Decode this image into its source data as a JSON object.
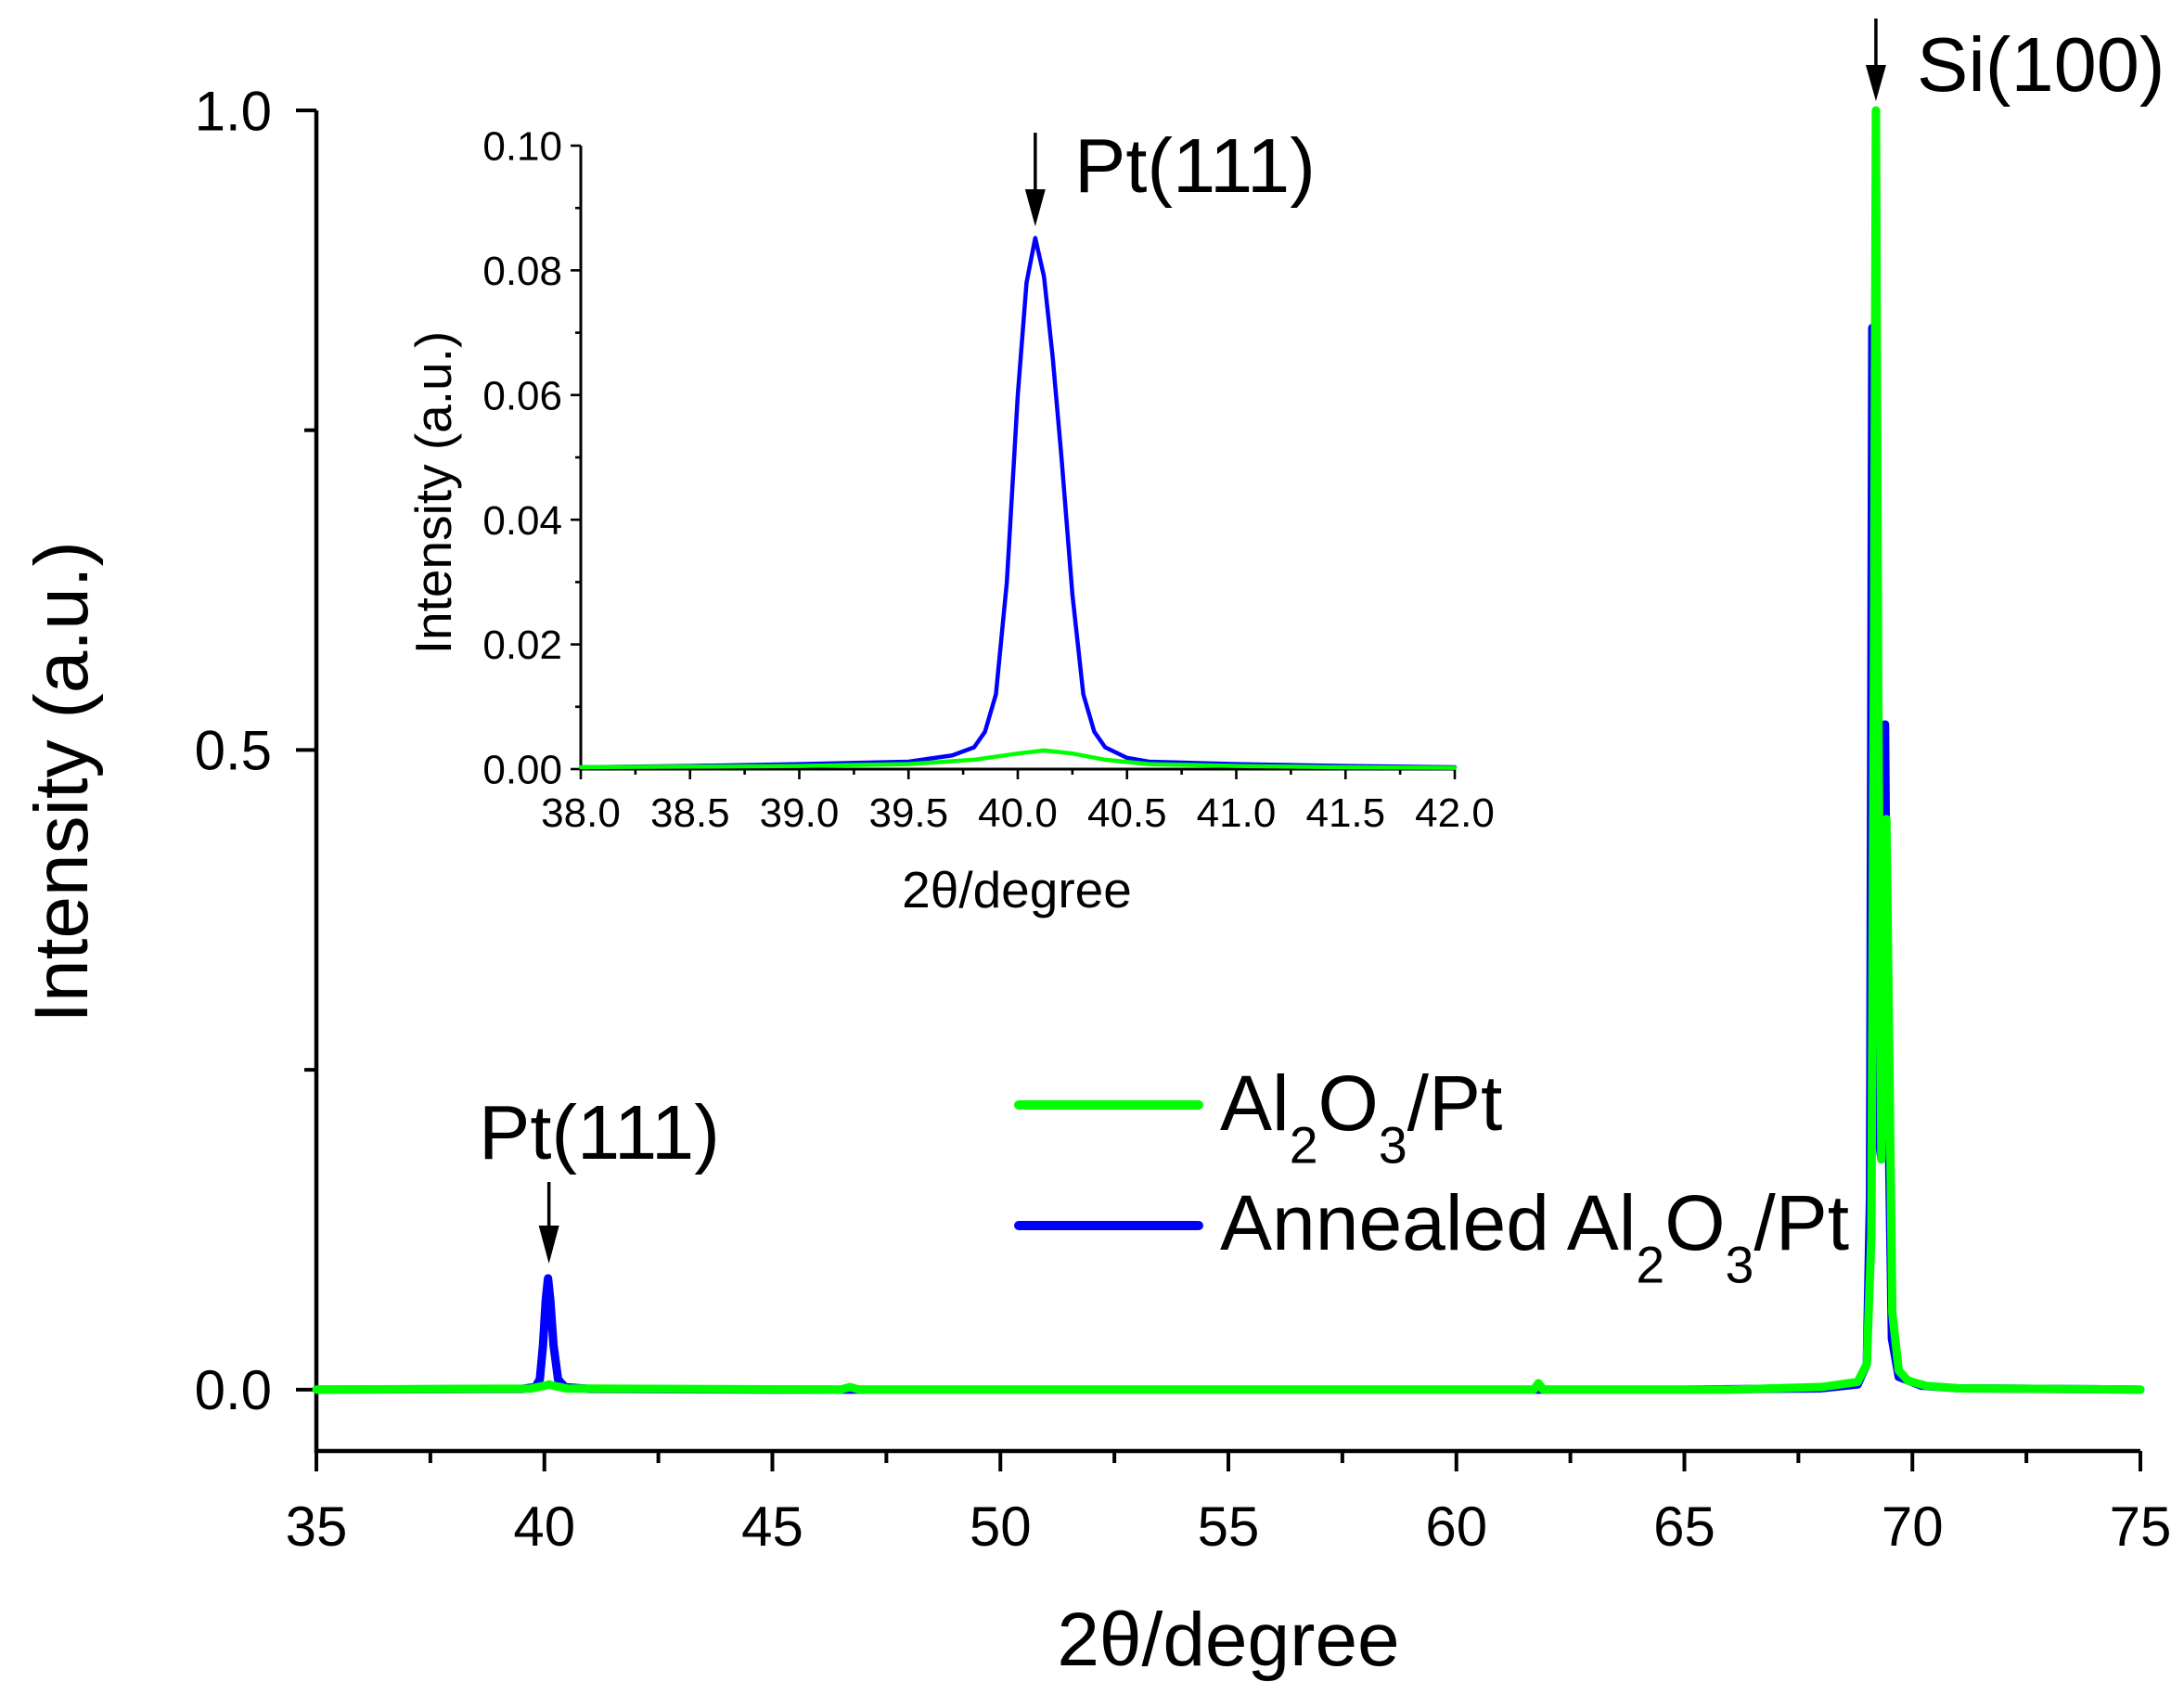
{
  "chart_data": [
    {
      "id": "main",
      "type": "line",
      "title": "",
      "xlabel": "2θ/degree",
      "ylabel": "Intensity (a.u.)",
      "xlim": [
        35,
        75
      ],
      "ylim": [
        -0.048,
        1.0
      ],
      "xticks": [
        "35",
        "40",
        "45",
        "50",
        "55",
        "60",
        "65",
        "70",
        "75"
      ],
      "yticks": [
        "0.0",
        "0.5",
        "1.0"
      ],
      "grid": false,
      "legend": "center",
      "axis_color": "#000000",
      "series": [
        {
          "name": "Al2O3/Pt",
          "color": "#00ff00",
          "x": [
            35,
            39.7,
            40.0,
            40.1,
            40.2,
            40.5,
            46.5,
            46.7,
            46.9,
            61.7,
            61.8,
            61.9,
            66,
            68,
            68.8,
            69.0,
            69.1,
            69.16,
            69.2,
            69.25,
            69.32,
            69.37,
            69.43,
            69.48,
            69.56,
            69.7,
            69.9,
            70.3,
            71,
            75
          ],
          "y": [
            0,
            0.0008,
            0.003,
            0.004,
            0.003,
            0.0008,
            0,
            0.002,
            0,
            0,
            0.005,
            0,
            0,
            0.002,
            0.006,
            0.02,
            0.12,
            0.6,
            1.0,
            0.55,
            0.18,
            0.25,
            0.446,
            0.3,
            0.06,
            0.015,
            0.007,
            0.003,
            0.001,
            0
          ]
        },
        {
          "name": "Annealed Al2O3/Pt",
          "color": "#0000ff",
          "x": [
            35,
            39.5,
            39.8,
            39.9,
            39.97,
            40.03,
            40.08,
            40.13,
            40.2,
            40.3,
            40.45,
            41,
            45,
            50,
            55,
            60,
            65,
            68,
            68.8,
            69.0,
            69.07,
            69.12,
            69.17,
            69.25,
            69.32,
            69.4,
            69.46,
            69.55,
            69.7,
            70.2,
            71,
            75
          ],
          "y": [
            0,
            0.0005,
            0.002,
            0.008,
            0.035,
            0.07,
            0.087,
            0.07,
            0.035,
            0.008,
            0.002,
            0.0005,
            0,
            0,
            0,
            0,
            0,
            0.001,
            0.004,
            0.02,
            0.15,
            0.83,
            0.45,
            0.2,
            0.18,
            0.52,
            0.25,
            0.04,
            0.01,
            0.003,
            0.001,
            0
          ]
        }
      ],
      "annotations": [
        {
          "text": "Pt(111)",
          "x": 40.1
        },
        {
          "text": "Si(100)",
          "x": 69.2
        }
      ]
    },
    {
      "id": "inset",
      "type": "line",
      "title": "",
      "xlabel": "2θ/degree",
      "ylabel": "Intensity (a.u.)",
      "xlim": [
        38.0,
        42.0
      ],
      "ylim": [
        0.0,
        0.1
      ],
      "xticks": [
        "38.0",
        "38.5",
        "39.0",
        "39.5",
        "40.0",
        "40.5",
        "41.0",
        "41.5",
        "42.0"
      ],
      "yticks": [
        "0.00",
        "0.02",
        "0.04",
        "0.06",
        "0.08",
        "0.10"
      ],
      "grid": false,
      "axis_color": "#000000",
      "series": [
        {
          "name": "Al2O3/Pt",
          "color": "#00ff00",
          "x": [
            38.0,
            38.5,
            39.0,
            39.5,
            39.8,
            40.0,
            40.12,
            40.25,
            40.4,
            40.6,
            41.0,
            41.5,
            42.0
          ],
          "y": [
            0.0003,
            0.0004,
            0.0005,
            0.0008,
            0.0015,
            0.0025,
            0.003,
            0.0025,
            0.0015,
            0.0008,
            0.0005,
            0.0003,
            0.0002
          ]
        },
        {
          "name": "Annealed Al2O3/Pt",
          "color": "#0000ff",
          "x": [
            38.0,
            38.5,
            39.0,
            39.5,
            39.7,
            39.8,
            39.85,
            39.9,
            39.95,
            40.0,
            40.04,
            40.08,
            40.12,
            40.16,
            40.2,
            40.25,
            40.3,
            40.35,
            40.4,
            40.5,
            40.6,
            41.0,
            41.5,
            42.0
          ],
          "y": [
            0.0003,
            0.0005,
            0.0008,
            0.0012,
            0.0022,
            0.0035,
            0.006,
            0.012,
            0.03,
            0.06,
            0.078,
            0.0852,
            0.079,
            0.066,
            0.05,
            0.028,
            0.012,
            0.006,
            0.0035,
            0.0018,
            0.0012,
            0.0008,
            0.0005,
            0.0003
          ]
        }
      ],
      "annotations": [
        {
          "text": "Pt(111)",
          "x": 40.08
        }
      ]
    }
  ]
}
